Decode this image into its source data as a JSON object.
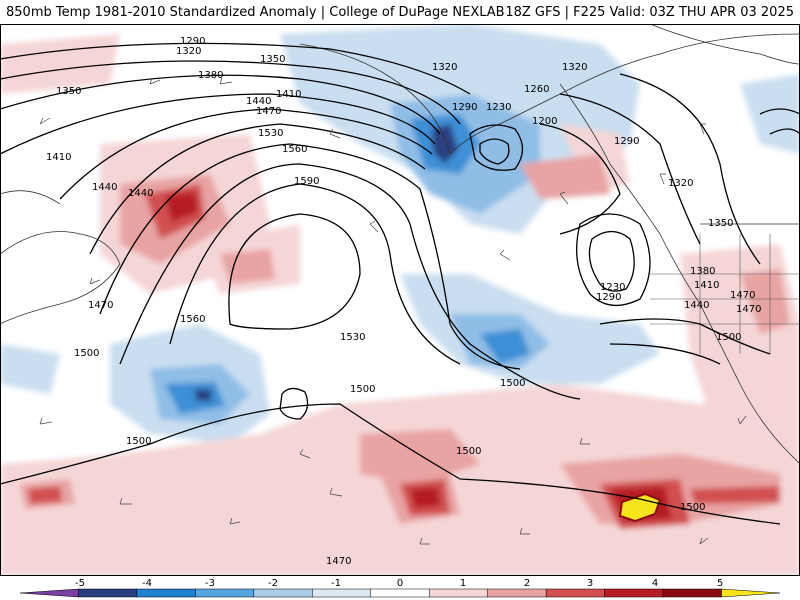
{
  "header": {
    "left_title": "850mb Temp 1981-2010 Standardized Anomaly | College of DuPage NEXLAB",
    "right_title": "18Z GFS | F225 Valid: 03Z THU APR 03 2025"
  },
  "contour_labels": [
    "1290",
    "1320",
    "1350",
    "1350",
    "1380",
    "1410",
    "1410",
    "1440",
    "1440",
    "1440",
    "1470",
    "1470",
    "1470",
    "1530",
    "1530",
    "1560",
    "1560",
    "1590",
    "1500",
    "1500",
    "1500",
    "1500",
    "1500",
    "1500",
    "1470",
    "1320",
    "1320",
    "1290",
    "1230",
    "1260",
    "1200",
    "1290",
    "1320",
    "1350",
    "1380",
    "1410",
    "1440",
    "1470",
    "1500",
    "1230",
    "1290"
  ],
  "colorbar": {
    "ticks": [
      "-5",
      "-4",
      "-3",
      "-2",
      "-1",
      "0",
      "1",
      "2",
      "3",
      "4",
      "5"
    ],
    "colors": [
      "#7a3fa0",
      "#2a3f80",
      "#1f7fd0",
      "#55a6e0",
      "#a9cde9",
      "#dce9f4",
      "#ffffff",
      "#f5d6d6",
      "#e8a3a3",
      "#d14f4f",
      "#b51c23",
      "#8a0b14",
      "#f6e51a"
    ]
  },
  "colors": {
    "contour": "#000000",
    "coast": "#222222",
    "border": "#555555"
  }
}
